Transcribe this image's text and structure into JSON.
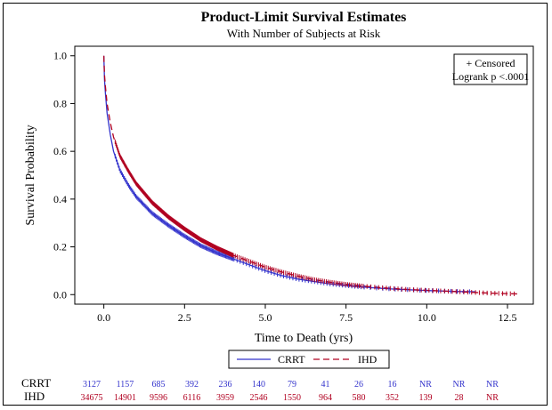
{
  "chart_data": {
    "type": "line",
    "title": "Product-Limit Survival Estimates",
    "subtitle": "With Number of Subjects at Risk",
    "xlabel": "Time to Death (yrs)",
    "ylabel": "Survival Probability",
    "xlim": [
      -0.9,
      13.3
    ],
    "ylim": [
      -0.04,
      1.04
    ],
    "xticks": [
      0.0,
      2.5,
      5.0,
      7.5,
      10.0,
      12.5
    ],
    "xtick_labels": [
      "0.0",
      "2.5",
      "5.0",
      "7.5",
      "10.0",
      "12.5"
    ],
    "yticks": [
      0.0,
      0.2,
      0.4,
      0.6,
      0.8,
      1.0
    ],
    "ytick_labels": [
      "0.0",
      "0.2",
      "0.4",
      "0.6",
      "0.8",
      "1.0"
    ],
    "grid": false,
    "inset_legend": [
      "+ Censored",
      "Logrank p <.0001"
    ],
    "legend_position": "bottom",
    "series": [
      {
        "name": "CRRT",
        "color": "#3333cc",
        "dash": "solid",
        "x": [
          0,
          0.02,
          0.05,
          0.1,
          0.2,
          0.3,
          0.5,
          0.75,
          1.0,
          1.25,
          1.5,
          2.0,
          2.5,
          3.0,
          3.5,
          4.0,
          4.5,
          5.0,
          5.5,
          6.0,
          6.5,
          7.0,
          7.5,
          8.0,
          8.5,
          9.0,
          9.5,
          10.0,
          10.5,
          11.0,
          11.5
        ],
        "y": [
          1.0,
          0.9,
          0.84,
          0.76,
          0.67,
          0.6,
          0.52,
          0.46,
          0.41,
          0.375,
          0.34,
          0.29,
          0.245,
          0.205,
          0.175,
          0.15,
          0.125,
          0.1,
          0.08,
          0.065,
          0.055,
          0.045,
          0.038,
          0.032,
          0.027,
          0.023,
          0.02,
          0.017,
          0.015,
          0.013,
          0.012
        ]
      },
      {
        "name": "IHD",
        "color": "#b00020",
        "dash": "dashed",
        "x": [
          0,
          0.02,
          0.05,
          0.1,
          0.2,
          0.3,
          0.5,
          0.75,
          1.0,
          1.5,
          2.0,
          2.5,
          3.0,
          3.5,
          4.0,
          4.5,
          5.0,
          5.5,
          6.0,
          6.5,
          7.0,
          7.5,
          8.0,
          8.5,
          9.0,
          9.5,
          10.0,
          10.5,
          11.0,
          11.5,
          12.0,
          12.5,
          12.8
        ],
        "y": [
          1.0,
          0.92,
          0.87,
          0.8,
          0.72,
          0.66,
          0.58,
          0.52,
          0.465,
          0.385,
          0.325,
          0.275,
          0.23,
          0.195,
          0.165,
          0.14,
          0.115,
          0.095,
          0.078,
          0.063,
          0.052,
          0.043,
          0.036,
          0.03,
          0.025,
          0.021,
          0.018,
          0.015,
          0.012,
          0.009,
          0.006,
          0.004,
          0.003
        ]
      }
    ],
    "risk_table": {
      "times": [
        0.0,
        1.0,
        2.0,
        3.0,
        4.0,
        5.0,
        6.0,
        7.0,
        8.0,
        9.0,
        10.0,
        11.0,
        12.0
      ],
      "rows": [
        {
          "label": "CRRT",
          "color": "#3333cc",
          "values": [
            "3127",
            "1157",
            "685",
            "392",
            "236",
            "140",
            "79",
            "41",
            "26",
            "16",
            "NR",
            "NR",
            "NR"
          ]
        },
        {
          "label": "IHD",
          "color": "#b00020",
          "values": [
            "34675",
            "14901",
            "9596",
            "6116",
            "3959",
            "2546",
            "1550",
            "964",
            "580",
            "352",
            "139",
            "28",
            "NR"
          ]
        }
      ]
    }
  }
}
